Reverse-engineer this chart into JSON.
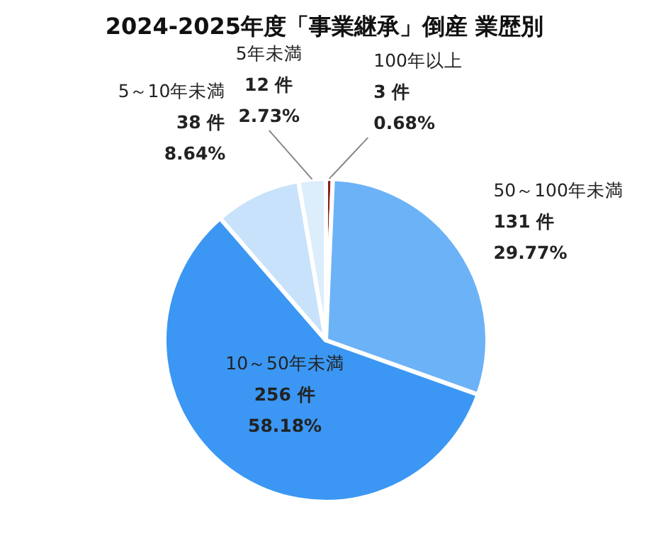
{
  "chart_data": {
    "type": "pie",
    "title": "2024-2025年度「事業継承」倒産 業歴別",
    "categories": [
      "100年以上",
      "50～100年未満",
      "10～50年未満",
      "5～10年未満",
      "5年未満"
    ],
    "values": [
      3,
      131,
      256,
      38,
      12
    ],
    "value_labels": [
      "3 件\n0.68%",
      "131 件\n29.77%",
      "256 件\n58.18%",
      "38 件\n8.64%",
      "12 件\n2.73%"
    ],
    "colors": [
      "#8b1e1e",
      "#6cb2f6",
      "#3b97f3",
      "#c8e2fb",
      "#dcedfc"
    ]
  }
}
